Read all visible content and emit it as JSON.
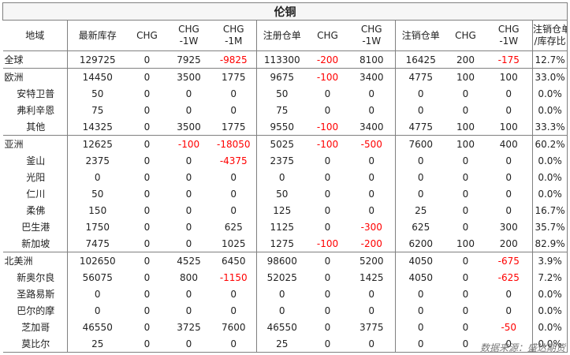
{
  "table": {
    "title": "伦铜",
    "source": "数据来源：盛达期货",
    "headers": [
      [
        "地域"
      ],
      [
        "最新库存"
      ],
      [
        "CHG"
      ],
      [
        "CHG",
        "-1W"
      ],
      [
        "CHG",
        "-1M"
      ],
      [
        "注册仓单"
      ],
      [
        "CHG"
      ],
      [
        "CHG",
        "-1W"
      ],
      [
        "注销仓单"
      ],
      [
        "CHG"
      ],
      [
        "CHG",
        "-1W"
      ],
      [
        "注销仓单",
        "/库存比"
      ]
    ],
    "negative_color": "#ff0000",
    "rows": [
      {
        "region": "全球",
        "sub": false,
        "sep": false,
        "values": [
          "129725",
          "0",
          "7925",
          "-9825",
          "113300",
          "-200",
          "8100",
          "16425",
          "200",
          "-175",
          "12.7%"
        ]
      },
      {
        "region": "欧洲",
        "sub": false,
        "sep": true,
        "values": [
          "14450",
          "0",
          "3500",
          "1775",
          "9675",
          "-100",
          "3400",
          "4775",
          "100",
          "100",
          "33.0%"
        ]
      },
      {
        "region": "安特卫普",
        "sub": true,
        "sep": false,
        "values": [
          "50",
          "0",
          "0",
          "0",
          "50",
          "0",
          "0",
          "0",
          "0",
          "0",
          "0.0%"
        ]
      },
      {
        "region": "弗利辛恩",
        "sub": true,
        "sep": false,
        "values": [
          "75",
          "0",
          "0",
          "0",
          "75",
          "0",
          "0",
          "0",
          "0",
          "0",
          "0.0%"
        ]
      },
      {
        "region": "其他",
        "sub": true,
        "sep": false,
        "values": [
          "14325",
          "0",
          "3500",
          "1775",
          "9550",
          "-100",
          "3400",
          "4775",
          "100",
          "100",
          "33.3%"
        ]
      },
      {
        "region": "亚洲",
        "sub": false,
        "sep": true,
        "values": [
          "12625",
          "0",
          "-100",
          "-18050",
          "5025",
          "-100",
          "-500",
          "7600",
          "100",
          "400",
          "60.2%"
        ]
      },
      {
        "region": "釜山",
        "sub": true,
        "sep": false,
        "values": [
          "2375",
          "0",
          "0",
          "-4375",
          "2375",
          "0",
          "0",
          "0",
          "0",
          "0",
          "0.0%"
        ]
      },
      {
        "region": "光阳",
        "sub": true,
        "sep": false,
        "values": [
          "0",
          "0",
          "0",
          "0",
          "0",
          "0",
          "0",
          "0",
          "0",
          "0",
          "0.0%"
        ]
      },
      {
        "region": "仁川",
        "sub": true,
        "sep": false,
        "values": [
          "50",
          "0",
          "0",
          "0",
          "50",
          "0",
          "0",
          "0",
          "0",
          "0",
          "0.0%"
        ]
      },
      {
        "region": "柔佛",
        "sub": true,
        "sep": false,
        "values": [
          "150",
          "0",
          "0",
          "0",
          "125",
          "0",
          "0",
          "25",
          "0",
          "0",
          "16.7%"
        ]
      },
      {
        "region": "巴生港",
        "sub": true,
        "sep": false,
        "values": [
          "1750",
          "0",
          "0",
          "625",
          "1125",
          "0",
          "-300",
          "625",
          "0",
          "300",
          "35.7%"
        ]
      },
      {
        "region": "新加坡",
        "sub": true,
        "sep": false,
        "values": [
          "7475",
          "0",
          "0",
          "1025",
          "1275",
          "-100",
          "-200",
          "6200",
          "100",
          "200",
          "82.9%"
        ]
      },
      {
        "region": "北美洲",
        "sub": false,
        "sep": true,
        "values": [
          "102650",
          "0",
          "4525",
          "6450",
          "98600",
          "0",
          "5200",
          "4050",
          "0",
          "-675",
          "3.9%"
        ]
      },
      {
        "region": "新奥尔良",
        "sub": true,
        "sep": false,
        "values": [
          "56075",
          "0",
          "800",
          "-1150",
          "52025",
          "0",
          "1425",
          "4050",
          "0",
          "-625",
          "7.2%"
        ]
      },
      {
        "region": "圣路易斯",
        "sub": true,
        "sep": false,
        "values": [
          "0",
          "0",
          "0",
          "0",
          "0",
          "0",
          "0",
          "0",
          "0",
          "0",
          "0.0%"
        ]
      },
      {
        "region": "巴尔的摩",
        "sub": true,
        "sep": false,
        "values": [
          "0",
          "0",
          "0",
          "0",
          "0",
          "0",
          "0",
          "0",
          "0",
          "0",
          "0.0%"
        ]
      },
      {
        "region": "芝加哥",
        "sub": true,
        "sep": false,
        "values": [
          "46550",
          "0",
          "3725",
          "7600",
          "46550",
          "0",
          "3775",
          "0",
          "0",
          "-50",
          "0.0%"
        ]
      },
      {
        "region": "莫比尔",
        "sub": true,
        "sep": false,
        "values": [
          "25",
          "0",
          "0",
          "0",
          "25",
          "0",
          "0",
          "0",
          "0",
          "0",
          "0.0%"
        ]
      }
    ]
  }
}
